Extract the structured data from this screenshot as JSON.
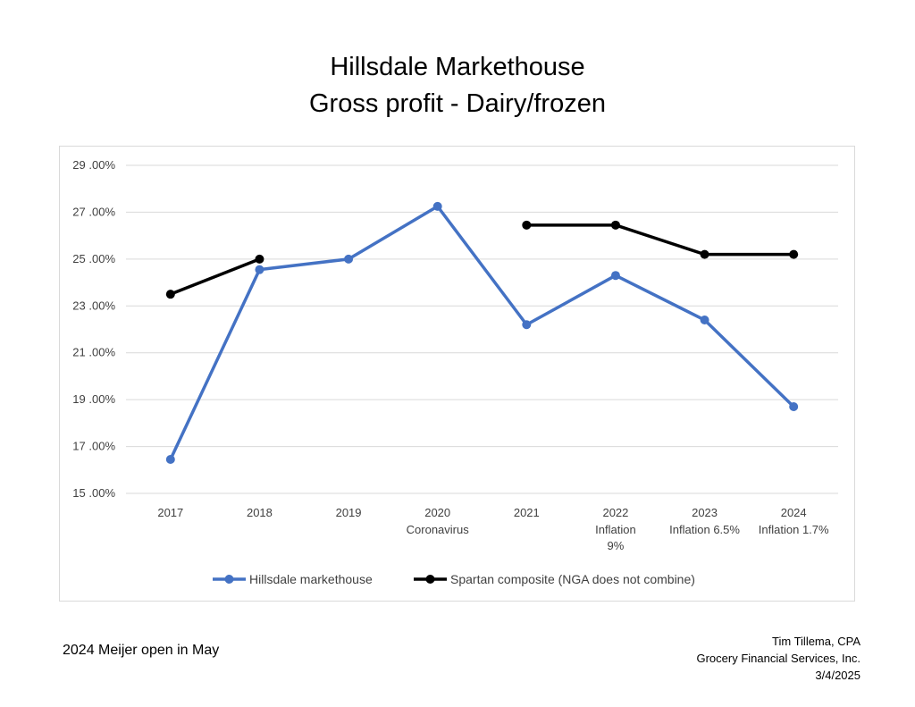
{
  "title_lines": [
    "Hillsdale Markethouse",
    "Gross profit - Dairy/frozen"
  ],
  "chart_data": {
    "type": "line",
    "categories": [
      "2017",
      "2018",
      "2019",
      "2020",
      "2021",
      "2022",
      "2023",
      "2024"
    ],
    "category_sublabels": [
      "",
      "",
      "",
      "Coronavirus",
      "",
      "Inflation\n9%",
      "Inflation 6.5%",
      "Inflation 1.7%"
    ],
    "ylim": [
      15,
      29
    ],
    "yticks": [
      15,
      17,
      19,
      21,
      23,
      25,
      27,
      29
    ],
    "ytick_labels": [
      "15 .00%",
      "17 .00%",
      "19 .00%",
      "21 .00%",
      "23 .00%",
      "25 .00%",
      "27 .00%",
      "29 .00%"
    ],
    "grid": true,
    "legend_position": "bottom",
    "series": [
      {
        "name": "Hillsdale markethouse",
        "color": "#4472C4",
        "values": [
          16.45,
          24.55,
          25.0,
          27.25,
          22.2,
          24.3,
          22.4,
          18.7
        ]
      },
      {
        "name": "Spartan composite (NGA does not combine)",
        "color": "#000000",
        "values": [
          23.5,
          25.0,
          null,
          null,
          26.45,
          26.45,
          25.2,
          25.2
        ]
      }
    ]
  },
  "footnote": "2024 Meijer open in May",
  "credits": [
    "Tim Tillema, CPA",
    "Grocery Financial Services, Inc.",
    "3/4/2025"
  ]
}
